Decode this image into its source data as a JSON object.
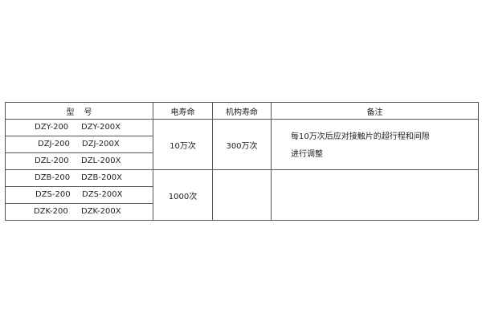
{
  "headers": {
    "model_a": "型",
    "model_b": "号",
    "electrical_life": "电寿命",
    "mechanical_life": "机构寿命",
    "remarks": "备注"
  },
  "rows": [
    {
      "model": "DZY-200",
      "model_x": "DZY-200X"
    },
    {
      "model": "DZJ-200",
      "model_x": "DZJ-200X"
    },
    {
      "model": "DZL-200",
      "model_x": "DZL-200X"
    },
    {
      "model": "DZB-200",
      "model_x": "DZB-200X"
    },
    {
      "model": "DZS-200",
      "model_x": "DZS-200X"
    },
    {
      "model": "DZK-200",
      "model_x": "DZK-200X"
    }
  ],
  "groups": [
    {
      "electrical_life": "10万次",
      "mechanical_life": "300万次",
      "remark_line1": "每10万次后应对接触片的超行程和间隙",
      "remark_line2": "进行调整"
    },
    {
      "electrical_life": "1000次",
      "mechanical_life": "",
      "remark_line1": "",
      "remark_line2": ""
    }
  ]
}
